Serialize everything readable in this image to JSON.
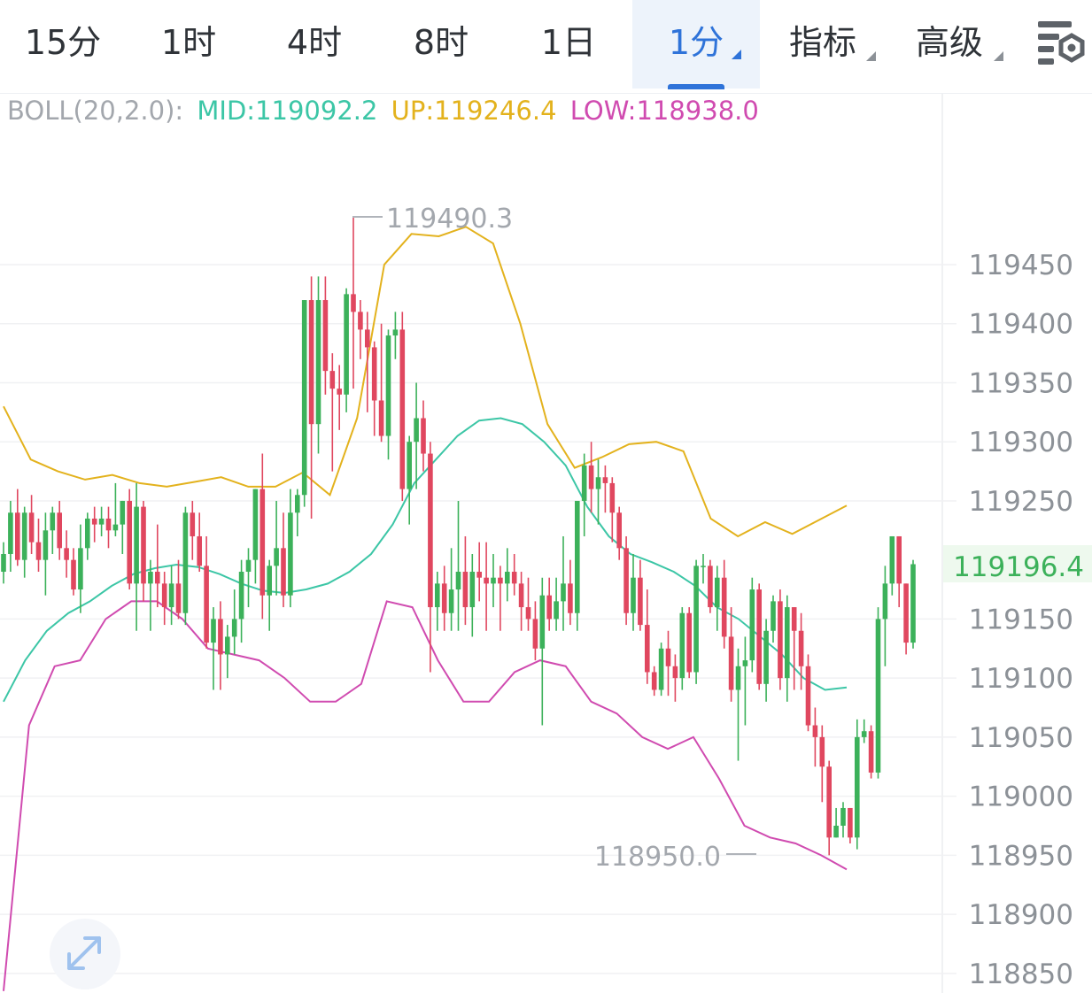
{
  "tabs": [
    {
      "label": "15分"
    },
    {
      "label": "1时"
    },
    {
      "label": "4时"
    },
    {
      "label": "8时"
    },
    {
      "label": "1日"
    },
    {
      "label": "1分"
    },
    {
      "label": "指标"
    },
    {
      "label": "高级"
    }
  ],
  "active_tab": "1分",
  "icons": {
    "settings": "chart-settings-icon",
    "expand": "expand-arrows-icon"
  },
  "legend": {
    "prefix": "BOLL(20,2.0):",
    "mid": "MID:119092.2",
    "up": "UP:119246.4",
    "low": "LOW:118938.0"
  },
  "colors": {
    "up_candle": "#3cb15a",
    "down_candle": "#e0475f",
    "mid_line": "#3cc6a6",
    "upper_line": "#e3b21d",
    "lower_line": "#d04bb0",
    "accent": "#2f73d9",
    "axis_text": "#8c9197"
  },
  "price_axis": {
    "labels": [
      "119450",
      "119400",
      "119350",
      "119300",
      "119250",
      "119150",
      "119100",
      "119050",
      "119000",
      "118950",
      "118900",
      "118850"
    ],
    "current_price": "119196.4"
  },
  "annotations": {
    "high": "119490.3",
    "low": "118950.0"
  },
  "chart_data": {
    "type": "candlestick",
    "indicator": "BOLL(20,2.0)",
    "price_range": [
      118835,
      119515
    ],
    "candles": [
      [
        119190,
        119215,
        119180,
        119205
      ],
      [
        119205,
        119250,
        119190,
        119240
      ],
      [
        119240,
        119260,
        119195,
        119200
      ],
      [
        119200,
        119245,
        119185,
        119240
      ],
      [
        119240,
        119255,
        119205,
        119215
      ],
      [
        119215,
        119235,
        119190,
        119200
      ],
      [
        119200,
        119240,
        119170,
        119225
      ],
      [
        119225,
        119245,
        119205,
        119240
      ],
      [
        119240,
        119250,
        119200,
        119210
      ],
      [
        119210,
        119225,
        119185,
        119200
      ],
      [
        119200,
        119210,
        119170,
        119175
      ],
      [
        119175,
        119230,
        119155,
        119210
      ],
      [
        119210,
        119240,
        119200,
        119235
      ],
      [
        119235,
        119245,
        119215,
        119230
      ],
      [
        119230,
        119245,
        119220,
        119235
      ],
      [
        119235,
        119245,
        119210,
        119225
      ],
      [
        119225,
        119265,
        119220,
        119230
      ],
      [
        119230,
        119250,
        119205,
        119250
      ],
      [
        119250,
        119260,
        119175,
        119180
      ],
      [
        119180,
        119265,
        119140,
        119245
      ],
      [
        119245,
        119250,
        119165,
        119180
      ],
      [
        119180,
        119200,
        119140,
        119190
      ],
      [
        119190,
        119230,
        119160,
        119180
      ],
      [
        119180,
        119190,
        119145,
        119160
      ],
      [
        119160,
        119195,
        119145,
        119180
      ],
      [
        119180,
        119200,
        119150,
        119155
      ],
      [
        119155,
        119245,
        119145,
        119240
      ],
      [
        119240,
        119250,
        119200,
        119220
      ],
      [
        119220,
        119240,
        119190,
        119195
      ],
      [
        119195,
        119220,
        119125,
        119130
      ],
      [
        119130,
        119160,
        119090,
        119150
      ],
      [
        119150,
        119165,
        119090,
        119120
      ],
      [
        119120,
        119145,
        119100,
        119135
      ],
      [
        119135,
        119175,
        119120,
        119150
      ],
      [
        119150,
        119200,
        119130,
        119190
      ],
      [
        119190,
        119210,
        119160,
        119200
      ],
      [
        119200,
        119260,
        119180,
        119260
      ],
      [
        119260,
        119290,
        119150,
        119170
      ],
      [
        119170,
        119200,
        119140,
        119195
      ],
      [
        119195,
        119250,
        119170,
        119210
      ],
      [
        119210,
        119240,
        119160,
        119170
      ],
      [
        119170,
        119260,
        119160,
        119240
      ],
      [
        119240,
        119260,
        119220,
        119255
      ],
      [
        119255,
        119420,
        119245,
        119420
      ],
      [
        119420,
        119440,
        119235,
        119315
      ],
      [
        119315,
        119440,
        119290,
        119420
      ],
      [
        119420,
        119440,
        119340,
        119360
      ],
      [
        119360,
        119375,
        119275,
        119345
      ],
      [
        119345,
        119365,
        119310,
        119340
      ],
      [
        119340,
        119430,
        119325,
        119425
      ],
      [
        119425,
        119490,
        119345,
        119410
      ],
      [
        119410,
        119420,
        119370,
        119395
      ],
      [
        119395,
        119410,
        119325,
        119380
      ],
      [
        119380,
        119385,
        119305,
        119335
      ],
      [
        119335,
        119400,
        119300,
        119305
      ],
      [
        119305,
        119395,
        119285,
        119390
      ],
      [
        119390,
        119410,
        119370,
        119395
      ],
      [
        119395,
        119410,
        119250,
        119260
      ],
      [
        119260,
        119305,
        119230,
        119300
      ],
      [
        119300,
        119350,
        119260,
        119320
      ],
      [
        119320,
        119335,
        119275,
        119290
      ],
      [
        119290,
        119300,
        119105,
        119160
      ],
      [
        119160,
        119190,
        119140,
        119180
      ],
      [
        119180,
        119195,
        119140,
        119155
      ],
      [
        119155,
        119210,
        119140,
        119175
      ],
      [
        119175,
        119250,
        119140,
        119190
      ],
      [
        119190,
        119220,
        119145,
        119160
      ],
      [
        119160,
        119205,
        119135,
        119190
      ],
      [
        119190,
        119215,
        119165,
        119185
      ],
      [
        119185,
        119215,
        119140,
        119180
      ],
      [
        119180,
        119205,
        119160,
        119185
      ],
      [
        119185,
        119195,
        119140,
        119180
      ],
      [
        119180,
        119210,
        119165,
        119190
      ],
      [
        119190,
        119205,
        119170,
        119180
      ],
      [
        119180,
        119190,
        119140,
        119160
      ],
      [
        119160,
        119185,
        119140,
        119150
      ],
      [
        119150,
        119165,
        119115,
        119125
      ],
      [
        119125,
        119185,
        119060,
        119170
      ],
      [
        119170,
        119185,
        119140,
        119150
      ],
      [
        119150,
        119185,
        119140,
        119165
      ],
      [
        119165,
        119220,
        119140,
        119180
      ],
      [
        119180,
        119200,
        119145,
        119155
      ],
      [
        119155,
        119250,
        119140,
        119250
      ],
      [
        119250,
        119290,
        119220,
        119280
      ],
      [
        119280,
        119300,
        119240,
        119260
      ],
      [
        119260,
        119285,
        119230,
        119270
      ],
      [
        119270,
        119280,
        119240,
        119265
      ],
      [
        119265,
        119270,
        119215,
        119240
      ],
      [
        119240,
        119245,
        119200,
        119210
      ],
      [
        119210,
        119220,
        119145,
        119155
      ],
      [
        119155,
        119205,
        119140,
        119185
      ],
      [
        119185,
        119200,
        119140,
        119145
      ],
      [
        119145,
        119175,
        119095,
        119105
      ],
      [
        119105,
        119110,
        119085,
        119090
      ],
      [
        119090,
        119130,
        119085,
        119125
      ],
      [
        119125,
        119140,
        119085,
        119110
      ],
      [
        119110,
        119120,
        119080,
        119100
      ],
      [
        119100,
        119160,
        119090,
        119155
      ],
      [
        119155,
        119160,
        119100,
        119105
      ],
      [
        119105,
        119200,
        119095,
        119195
      ],
      [
        119195,
        119205,
        119180,
        119195
      ],
      [
        119195,
        119200,
        119155,
        119160
      ],
      [
        119160,
        119195,
        119140,
        119185
      ],
      [
        119185,
        119200,
        119125,
        119135
      ],
      [
        119135,
        119160,
        119080,
        119090
      ],
      [
        119090,
        119125,
        119030,
        119110
      ],
      [
        119110,
        119135,
        119060,
        119115
      ],
      [
        119115,
        119185,
        119105,
        119175
      ],
      [
        119175,
        119180,
        119090,
        119095
      ],
      [
        119095,
        119150,
        119080,
        119140
      ],
      [
        119140,
        119170,
        119130,
        119165
      ],
      [
        119165,
        119175,
        119090,
        119100
      ],
      [
        119100,
        119170,
        119080,
        119160
      ],
      [
        119160,
        119160,
        119090,
        119140
      ],
      [
        119140,
        119155,
        119090,
        119110
      ],
      [
        119110,
        119120,
        119055,
        119060
      ],
      [
        119060,
        119075,
        119025,
        119050
      ],
      [
        119050,
        119060,
        118995,
        119025
      ],
      [
        119025,
        119030,
        118950,
        118965
      ],
      [
        118965,
        118990,
        118965,
        118975
      ],
      [
        118975,
        118995,
        118965,
        118990
      ],
      [
        118990,
        118990,
        118960,
        118965
      ],
      [
        118965,
        119065,
        118955,
        119050
      ],
      [
        119050,
        119065,
        119045,
        119055
      ],
      [
        119055,
        119060,
        119015,
        119020
      ],
      [
        119020,
        119160,
        119015,
        119150
      ],
      [
        119150,
        119195,
        119110,
        119180
      ],
      [
        119180,
        119220,
        119170,
        119220
      ],
      [
        119220,
        119220,
        119160,
        119180
      ],
      [
        119180,
        119180,
        119120,
        119130
      ],
      [
        119130,
        119200,
        119125,
        119196.4
      ]
    ],
    "mid_line": [
      119080,
      119115,
      119140,
      119155,
      119165,
      119178,
      119188,
      119193,
      119196,
      119194,
      119188,
      119180,
      119174,
      119172,
      119175,
      119180,
      119190,
      119205,
      119230,
      119265,
      119285,
      119305,
      119318,
      119320,
      119315,
      119300,
      119280,
      119245,
      119220,
      119205,
      119198,
      119190,
      119178,
      119160,
      119150,
      119135,
      119120,
      119100,
      119090,
      119092
    ],
    "upper_line": [
      119330,
      119285,
      119275,
      119268,
      119272,
      119265,
      119262,
      119266,
      119270,
      119262,
      119262,
      119274,
      119255,
      119320,
      119450,
      119476,
      119474,
      119482,
      119468,
      119400,
      119315,
      119278,
      119287,
      119298,
      119300,
      119292,
      119235,
      119220,
      119232,
      119222,
      119234,
      119246
    ],
    "lower_line": [
      118835,
      119060,
      119110,
      119115,
      119150,
      119165,
      119165,
      119150,
      119125,
      119120,
      119115,
      119100,
      119080,
      119080,
      119095,
      119165,
      119160,
      119115,
      119080,
      119080,
      119105,
      119115,
      119110,
      119080,
      119070,
      119050,
      119040,
      119050,
      119015,
      118975,
      118965,
      118960,
      118950,
      118938
    ]
  }
}
